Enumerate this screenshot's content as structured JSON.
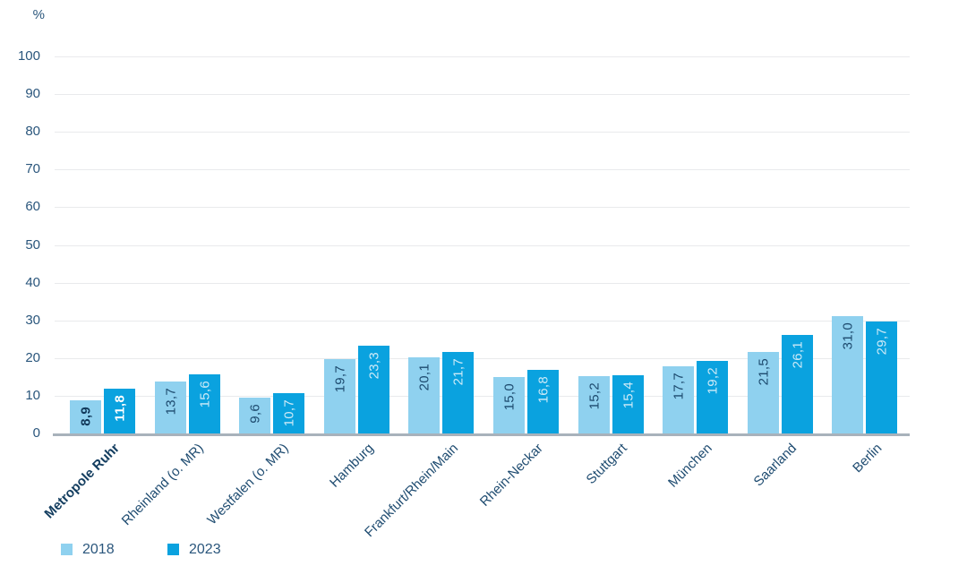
{
  "chart_data": {
    "type": "bar",
    "title": "",
    "unit_label": "%",
    "categories": [
      "Metropole Ruhr",
      "Rheinland (o. MR)",
      "Westfalen (o. MR)",
      "Hamburg",
      "Frankfurt/Rhein/Main",
      "Rhein-Neckar",
      "Stuttgart",
      "München",
      "Saarland",
      "Berlin"
    ],
    "emphasized_category_index": 0,
    "series": [
      {
        "name": "2018",
        "color": "#8fd1ef",
        "label_color": "#1d4a6e",
        "emph_label_color": "#12395a",
        "values": [
          8.9,
          13.7,
          9.6,
          19.7,
          20.1,
          15.0,
          15.2,
          17.7,
          21.5,
          31.0
        ],
        "value_labels": [
          "8,9",
          "13,7",
          "9,6",
          "19,7",
          "20,1",
          "15,0",
          "15,2",
          "17,7",
          "21,5",
          "31,0"
        ]
      },
      {
        "name": "2023",
        "color": "#0aa2df",
        "label_color": "#cdeaf7",
        "emph_label_color": "#ffffff",
        "values": [
          11.8,
          15.6,
          10.7,
          23.3,
          21.7,
          16.8,
          15.4,
          19.2,
          26.1,
          29.7
        ],
        "value_labels": [
          "11,8",
          "15,6",
          "10,7",
          "23,3",
          "21,7",
          "16,8",
          "15,4",
          "19,2",
          "26,1",
          "29,7"
        ]
      }
    ],
    "ylim": [
      0,
      100
    ],
    "ytick_step": 10,
    "grid": true,
    "gridline_color": "#e9eaec",
    "axis_line_color": "#a8b2bb",
    "axis_text_color": "#2a567c",
    "legend_position": "bottom-left",
    "legend": [
      {
        "label": "2018",
        "color": "#8fd1ef"
      },
      {
        "label": "2023",
        "color": "#0aa2df"
      }
    ]
  }
}
